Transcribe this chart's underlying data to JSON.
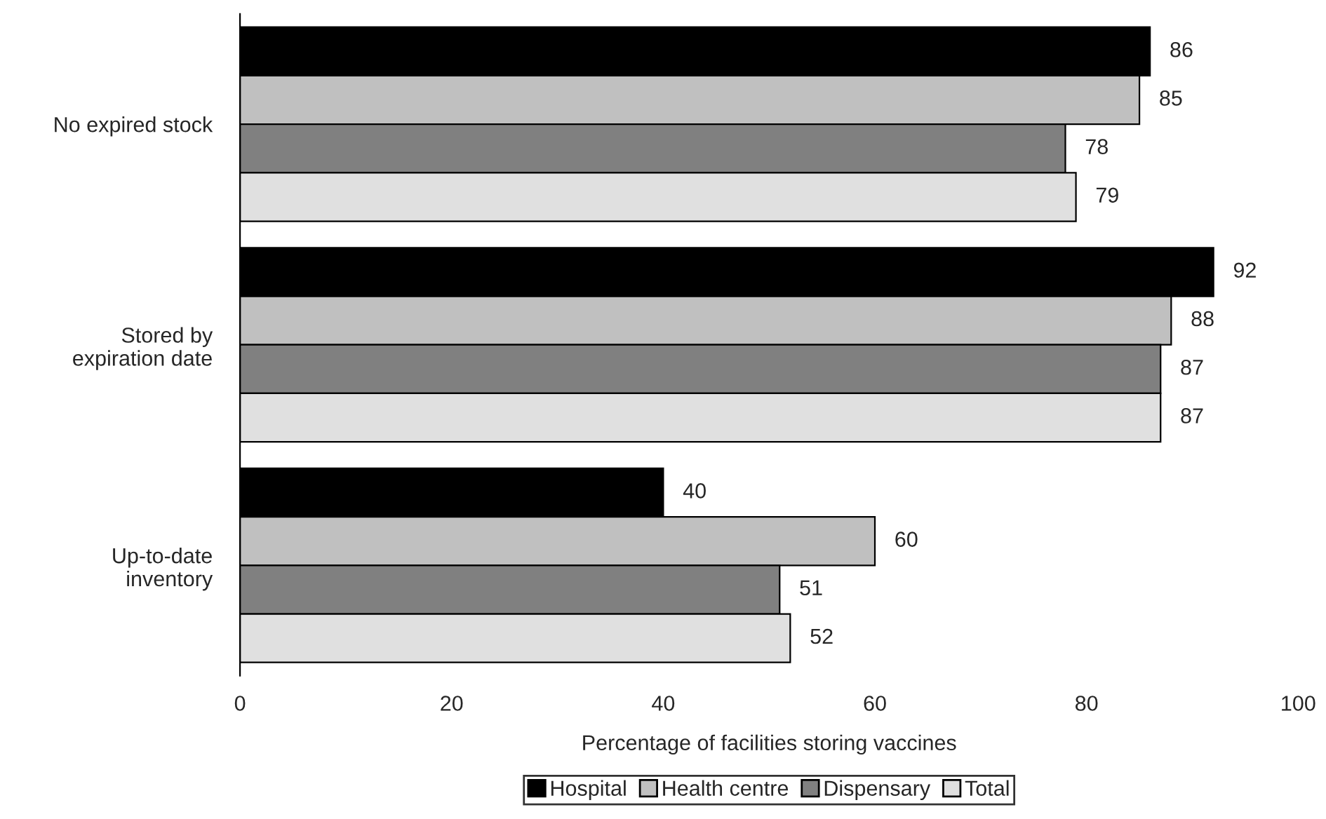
{
  "chart_data": {
    "type": "bar",
    "orientation": "horizontal",
    "categories": [
      "No expired stock",
      "Stored by\nexpiration date",
      "Up-to-date\ninventory"
    ],
    "series": [
      {
        "name": "Hospital",
        "color": "#000000",
        "values": [
          86,
          92,
          40
        ]
      },
      {
        "name": "Health centre",
        "color": "#c0c0c0",
        "values": [
          85,
          88,
          60
        ]
      },
      {
        "name": "Dispensary",
        "color": "#808080",
        "values": [
          78,
          87,
          51
        ]
      },
      {
        "name": "Total",
        "color": "#e0e0e0",
        "values": [
          79,
          87,
          52
        ]
      }
    ],
    "xlabel": "Percentage of facilities storing vaccines",
    "xlim": [
      0,
      100
    ],
    "xticks": [
      0,
      20,
      40,
      60,
      80,
      100
    ],
    "data_labels": true,
    "grid": false,
    "legend": "bottom"
  }
}
